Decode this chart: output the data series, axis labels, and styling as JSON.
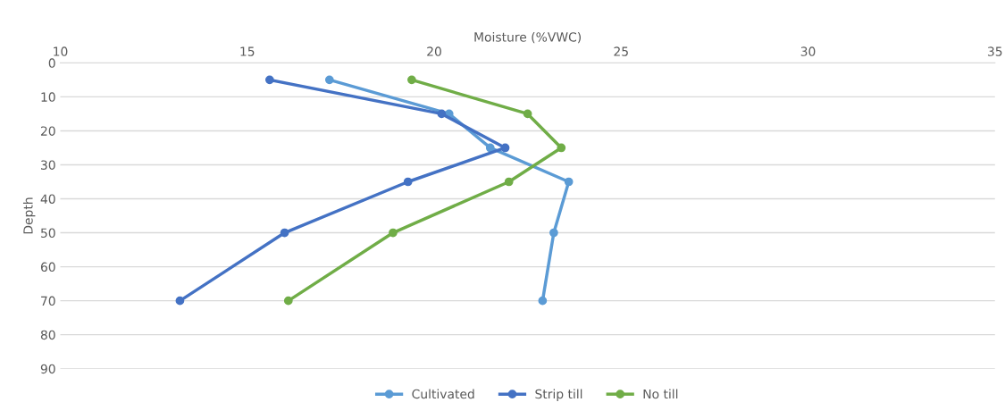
{
  "chart_data": {
    "type": "line",
    "xlabel": "Moisture (%VWC)",
    "ylabel": "Depth",
    "xlim": [
      10,
      35
    ],
    "xticks": [
      10,
      15,
      20,
      25,
      30,
      35
    ],
    "ylim": [
      90,
      0
    ],
    "yticks": [
      0,
      10,
      20,
      30,
      40,
      50,
      60,
      70,
      80,
      90
    ],
    "grid": "y",
    "legend": "bottom",
    "marker": "circle",
    "line_style": "solid",
    "series": [
      {
        "name": "Cultivated",
        "color": "#5b9bd5",
        "x": [
          17.2,
          20.4,
          21.5,
          23.6,
          23.2,
          22.9
        ],
        "values": [
          5,
          15,
          25,
          35,
          50,
          70
        ]
      },
      {
        "name": "Strip till",
        "color": "#4472c4",
        "x": [
          15.6,
          20.2,
          21.9,
          19.3,
          16.0,
          13.2
        ],
        "values": [
          5,
          15,
          25,
          35,
          50,
          70
        ]
      },
      {
        "name": "No till",
        "color": "#70ad47",
        "x": [
          19.4,
          22.5,
          23.4,
          22.0,
          18.9,
          16.1
        ],
        "values": [
          5,
          15,
          25,
          35,
          50,
          70
        ]
      }
    ]
  }
}
